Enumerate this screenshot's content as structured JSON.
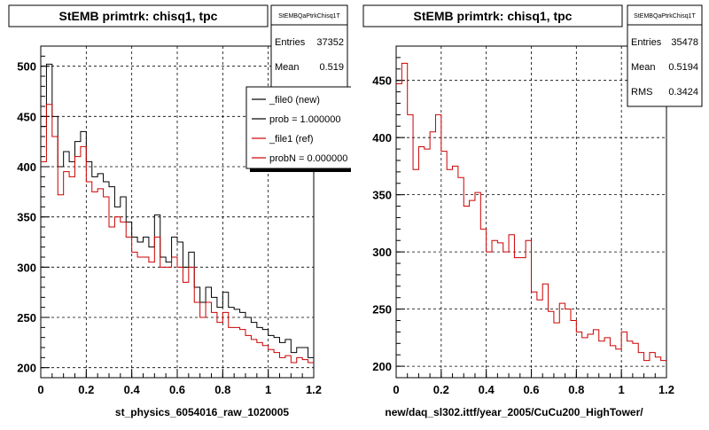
{
  "chart_data": [
    {
      "type": "histogram",
      "title": "StEMB primtrk: chisq1, tpc",
      "xlabel": "st_physics_6054016_raw_1020005",
      "ylabel": "",
      "xlim": [
        0,
        1.2
      ],
      "ylim": [
        190,
        520
      ],
      "x_ticks": [
        "0",
        "0.2",
        "0.4",
        "0.6",
        "0.8",
        "1",
        "1.2"
      ],
      "y_ticks": [
        "200",
        "250",
        "300",
        "350",
        "400",
        "450",
        "500"
      ],
      "grid": true,
      "bin_width": 0.025,
      "stats": {
        "name": "StEMBQaPtrkChisq1T",
        "entries_label": "Entries",
        "entries": "37352",
        "mean_label": "Mean",
        "mean": "0.519"
      },
      "legend": {
        "placement": "top-right",
        "entries": [
          {
            "label": "_file0 (new)",
            "color": "#000000"
          },
          {
            "label": "prob = 1.000000",
            "color": "#000000"
          },
          {
            "label": "_file1 (ref)",
            "color": "#cc0000"
          },
          {
            "label": "probN = 0.000000",
            "color": "#cc0000"
          }
        ]
      },
      "series": [
        {
          "name": "_file0 (new)",
          "color": "#000000",
          "values": [
            440,
            502,
            450,
            400,
            415,
            405,
            425,
            435,
            405,
            390,
            393,
            385,
            380,
            360,
            370,
            345,
            330,
            325,
            330,
            320,
            352,
            310,
            305,
            330,
            325,
            300,
            315,
            280,
            265,
            280,
            270,
            260,
            275,
            260,
            258,
            255,
            250,
            245,
            240,
            238,
            232,
            230,
            225,
            228,
            215,
            220,
            220,
            210
          ]
        },
        {
          "name": "_file1 (ref)",
          "color": "#cc0000",
          "values": [
            405,
            462,
            430,
            372,
            395,
            390,
            410,
            420,
            385,
            375,
            378,
            370,
            340,
            350,
            345,
            330,
            315,
            310,
            310,
            305,
            330,
            300,
            300,
            310,
            300,
            285,
            300,
            265,
            250,
            265,
            255,
            245,
            255,
            240,
            240,
            238,
            232,
            228,
            225,
            222,
            218,
            215,
            210,
            212,
            205,
            210,
            208,
            205
          ]
        }
      ]
    },
    {
      "type": "histogram",
      "title": "StEMB primtrk: chisq1, tpc",
      "xlabel": "new/daq_sl302.ittf/year_2005/CuCu200_HighTower/",
      "ylabel": "",
      "xlim": [
        0,
        1.2
      ],
      "ylim": [
        190,
        480
      ],
      "x_ticks": [
        "0",
        "0.2",
        "0.4",
        "0.6",
        "0.8",
        "1",
        "1.2"
      ],
      "y_ticks": [
        "200",
        "250",
        "300",
        "350",
        "400",
        "450"
      ],
      "grid": true,
      "bin_width": 0.025,
      "stats": {
        "name": "StEMBQaPtrkChisq1T",
        "entries_label": "Entries",
        "entries": "35478",
        "mean_label": "Mean",
        "mean": "0.5194",
        "rms_label": "RMS",
        "rms": "0.3424"
      },
      "series": [
        {
          "name": "",
          "color": "#cc0000",
          "values": [
            447,
            465,
            420,
            372,
            392,
            390,
            405,
            420,
            388,
            372,
            375,
            365,
            340,
            345,
            352,
            320,
            300,
            310,
            308,
            300,
            315,
            295,
            295,
            310,
            265,
            258,
            272,
            248,
            238,
            255,
            250,
            240,
            230,
            225,
            228,
            232,
            222,
            225,
            218,
            215,
            230,
            222,
            220,
            212,
            205,
            212,
            208,
            205
          ]
        }
      ]
    }
  ]
}
